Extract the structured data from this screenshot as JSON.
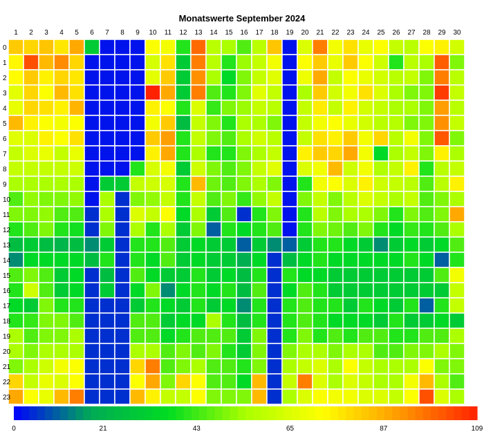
{
  "chart_data": {
    "type": "heatmap",
    "title": "Monatswerte September 2024",
    "x": [
      "1",
      "2",
      "3",
      "4",
      "5",
      "6",
      "7",
      "8",
      "9",
      "10",
      "11",
      "12",
      "13",
      "14",
      "15",
      "16",
      "17",
      "18",
      "19",
      "20",
      "21",
      "22",
      "23",
      "24",
      "25",
      "26",
      "27",
      "28",
      "29",
      "30"
    ],
    "y": [
      "0",
      "1",
      "2",
      "3",
      "4",
      "5",
      "6",
      "7",
      "8",
      "9",
      "10",
      "11",
      "12",
      "13",
      "14",
      "15",
      "16",
      "17",
      "18",
      "19",
      "20",
      "21",
      "22",
      "23"
    ],
    "zlim": [
      0,
      109
    ],
    "colorbar_ticks": [
      0,
      21,
      43,
      65,
      87,
      109
    ],
    "colorscale": [
      "#0000ff",
      "#00aa55",
      "#00dd22",
      "#aaff00",
      "#ffff00",
      "#ff9900",
      "#ff2200"
    ],
    "grid": true,
    "values": [
      [
        82,
        80,
        83,
        77,
        88,
        30,
        2,
        2,
        2,
        72,
        70,
        40,
        98,
        58,
        55,
        45,
        58,
        83,
        2,
        65,
        95,
        70,
        78,
        68,
        72,
        60,
        58,
        72,
        75,
        63
      ],
      [
        74,
        102,
        85,
        93,
        80,
        2,
        2,
        2,
        2,
        64,
        78,
        30,
        95,
        58,
        40,
        53,
        60,
        70,
        2,
        72,
        82,
        68,
        82,
        72,
        62,
        40,
        58,
        55,
        100,
        50
      ],
      [
        73,
        82,
        75,
        80,
        77,
        2,
        2,
        2,
        2,
        67,
        82,
        30,
        92,
        55,
        35,
        50,
        60,
        66,
        2,
        69,
        88,
        60,
        72,
        68,
        63,
        58,
        60,
        50,
        95,
        58
      ],
      [
        67,
        80,
        72,
        85,
        78,
        2,
        2,
        2,
        2,
        109,
        88,
        30,
        95,
        45,
        40,
        50,
        66,
        60,
        2,
        55,
        82,
        63,
        70,
        78,
        65,
        55,
        50,
        50,
        105,
        60
      ],
      [
        68,
        80,
        78,
        75,
        86,
        2,
        2,
        2,
        2,
        75,
        72,
        40,
        65,
        42,
        50,
        53,
        60,
        58,
        2,
        60,
        76,
        60,
        75,
        63,
        60,
        55,
        55,
        50,
        90,
        58
      ],
      [
        85,
        75,
        72,
        70,
        72,
        2,
        2,
        2,
        2,
        70,
        82,
        25,
        60,
        50,
        40,
        55,
        55,
        50,
        2,
        60,
        70,
        72,
        68,
        63,
        58,
        57,
        50,
        50,
        92,
        60
      ],
      [
        66,
        65,
        75,
        72,
        78,
        2,
        2,
        2,
        2,
        82,
        90,
        40,
        60,
        50,
        45,
        55,
        62,
        58,
        2,
        60,
        78,
        75,
        82,
        70,
        80,
        58,
        70,
        50,
        101,
        50
      ],
      [
        60,
        65,
        68,
        60,
        68,
        2,
        2,
        2,
        2,
        75,
        88,
        40,
        55,
        40,
        40,
        50,
        55,
        60,
        2,
        75,
        82,
        80,
        88,
        70,
        35,
        55,
        60,
        50,
        75,
        55
      ],
      [
        60,
        60,
        60,
        60,
        62,
        2,
        2,
        2,
        40,
        64,
        70,
        30,
        62,
        50,
        45,
        50,
        60,
        66,
        2,
        65,
        70,
        85,
        62,
        70,
        56,
        60,
        75,
        40,
        58,
        60
      ],
      [
        55,
        55,
        55,
        55,
        55,
        2,
        30,
        30,
        60,
        62,
        64,
        40,
        85,
        48,
        45,
        50,
        55,
        50,
        2,
        40,
        70,
        72,
        65,
        75,
        62,
        60,
        58,
        45,
        58,
        75
      ],
      [
        45,
        52,
        50,
        50,
        52,
        2,
        55,
        5,
        50,
        52,
        60,
        40,
        60,
        45,
        50,
        42,
        52,
        60,
        2,
        50,
        60,
        50,
        58,
        65,
        60,
        55,
        60,
        45,
        50,
        55
      ],
      [
        50,
        50,
        52,
        45,
        45,
        5,
        55,
        5,
        65,
        60,
        72,
        35,
        55,
        30,
        45,
        5,
        40,
        50,
        2,
        40,
        58,
        50,
        55,
        55,
        50,
        40,
        50,
        45,
        50,
        88
      ],
      [
        40,
        45,
        50,
        40,
        38,
        5,
        50,
        5,
        55,
        40,
        55,
        30,
        50,
        10,
        40,
        35,
        40,
        45,
        2,
        40,
        50,
        48,
        45,
        50,
        40,
        35,
        42,
        40,
        45,
        55
      ],
      [
        25,
        30,
        25,
        22,
        25,
        15,
        30,
        5,
        40,
        40,
        45,
        30,
        35,
        30,
        30,
        10,
        30,
        15,
        10,
        30,
        40,
        40,
        35,
        30,
        15,
        30,
        35,
        30,
        35,
        45
      ],
      [
        15,
        35,
        35,
        35,
        35,
        25,
        40,
        5,
        40,
        35,
        45,
        30,
        35,
        30,
        30,
        20,
        35,
        5,
        25,
        35,
        40,
        35,
        35,
        35,
        35,
        35,
        40,
        35,
        10,
        40
      ],
      [
        45,
        50,
        45,
        30,
        35,
        5,
        25,
        5,
        45,
        35,
        30,
        30,
        40,
        30,
        35,
        25,
        40,
        5,
        40,
        35,
        35,
        30,
        30,
        30,
        30,
        30,
        30,
        30,
        45,
        70
      ],
      [
        40,
        62,
        45,
        30,
        35,
        5,
        30,
        5,
        35,
        50,
        15,
        35,
        40,
        35,
        40,
        25,
        45,
        5,
        35,
        45,
        40,
        30,
        30,
        30,
        30,
        30,
        30,
        30,
        30,
        60
      ],
      [
        35,
        30,
        50,
        40,
        40,
        5,
        5,
        5,
        30,
        40,
        35,
        30,
        40,
        30,
        35,
        15,
        40,
        5,
        40,
        45,
        40,
        40,
        30,
        40,
        35,
        30,
        40,
        10,
        40,
        60
      ],
      [
        40,
        42,
        50,
        50,
        45,
        5,
        5,
        5,
        45,
        45,
        30,
        35,
        35,
        55,
        40,
        25,
        40,
        5,
        40,
        45,
        40,
        35,
        35,
        35,
        30,
        40,
        30,
        30,
        35,
        30
      ],
      [
        55,
        45,
        50,
        50,
        55,
        5,
        5,
        5,
        45,
        45,
        35,
        40,
        45,
        45,
        45,
        30,
        50,
        5,
        40,
        50,
        40,
        45,
        40,
        45,
        45,
        40,
        40,
        45,
        45,
        55
      ],
      [
        55,
        50,
        55,
        55,
        55,
        5,
        5,
        5,
        55,
        55,
        45,
        50,
        45,
        50,
        40,
        30,
        50,
        5,
        50,
        55,
        55,
        50,
        55,
        55,
        45,
        45,
        50,
        50,
        55,
        50
      ],
      [
        50,
        55,
        62,
        70,
        72,
        5,
        5,
        5,
        80,
        95,
        45,
        50,
        55,
        45,
        45,
        40,
        50,
        5,
        55,
        60,
        65,
        55,
        72,
        60,
        55,
        55,
        55,
        72,
        50,
        50
      ],
      [
        80,
        60,
        68,
        65,
        72,
        5,
        5,
        5,
        72,
        88,
        50,
        80,
        72,
        45,
        45,
        35,
        85,
        5,
        60,
        95,
        65,
        55,
        65,
        60,
        55,
        55,
        70,
        85,
        55,
        45
      ],
      [
        88,
        72,
        68,
        85,
        95,
        5,
        5,
        5,
        85,
        75,
        60,
        60,
        72,
        50,
        50,
        50,
        85,
        5,
        55,
        65,
        72,
        70,
        70,
        65,
        65,
        60,
        72,
        102,
        65,
        55
      ]
    ]
  }
}
